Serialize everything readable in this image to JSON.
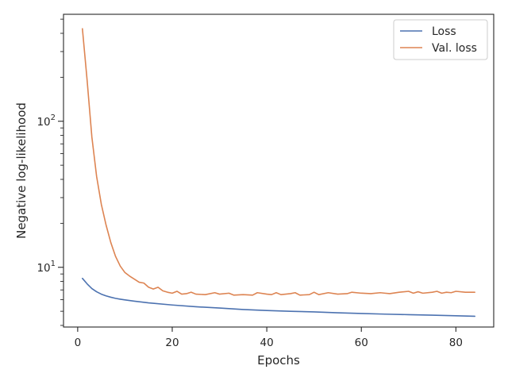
{
  "chart_data": {
    "type": "line",
    "xlabel": "Epochs",
    "ylabel": "Negative log-likelihood",
    "y_scale": "log",
    "xlim": [
      -3,
      88
    ],
    "ylim": [
      3.9,
      540
    ],
    "x_ticks": [
      0,
      20,
      40,
      60,
      80
    ],
    "y_ticks": [
      {
        "value": 10,
        "base": "10",
        "exp": "1"
      },
      {
        "value": 100,
        "base": "10",
        "exp": "2"
      }
    ],
    "y_minor_ticks": [
      4,
      5,
      6,
      7,
      8,
      9,
      20,
      30,
      40,
      50,
      60,
      70,
      80,
      90,
      200,
      300,
      400,
      500
    ],
    "legend_position": "top-right",
    "grid": false,
    "series": [
      {
        "name": "Loss",
        "color": "#4c72b0",
        "points": [
          [
            1,
            8.4
          ],
          [
            2,
            7.7
          ],
          [
            3,
            7.15
          ],
          [
            4,
            6.8
          ],
          [
            5,
            6.55
          ],
          [
            6,
            6.37
          ],
          [
            7,
            6.24
          ],
          [
            8,
            6.13
          ],
          [
            9,
            6.05
          ],
          [
            10,
            5.98
          ],
          [
            12,
            5.86
          ],
          [
            15,
            5.71
          ],
          [
            20,
            5.52
          ],
          [
            25,
            5.37
          ],
          [
            30,
            5.26
          ],
          [
            35,
            5.14
          ],
          [
            40,
            5.06
          ],
          [
            45,
            5.0
          ],
          [
            50,
            4.95
          ],
          [
            55,
            4.88
          ],
          [
            60,
            4.83
          ],
          [
            65,
            4.78
          ],
          [
            70,
            4.74
          ],
          [
            75,
            4.7
          ],
          [
            80,
            4.66
          ],
          [
            84,
            4.62
          ]
        ]
      },
      {
        "name": "Val. loss",
        "color": "#dd8452",
        "points": [
          [
            1,
            430
          ],
          [
            2,
            190
          ],
          [
            3,
            78
          ],
          [
            4,
            42
          ],
          [
            5,
            27
          ],
          [
            6,
            19.5
          ],
          [
            7,
            14.8
          ],
          [
            8,
            11.9
          ],
          [
            9,
            10.2
          ],
          [
            10,
            9.2
          ],
          [
            11,
            8.7
          ],
          [
            12,
            8.3
          ],
          [
            13,
            7.9
          ],
          [
            14,
            7.8
          ],
          [
            15,
            7.3
          ],
          [
            16,
            7.1
          ],
          [
            17,
            7.3
          ],
          [
            18,
            6.9
          ],
          [
            19,
            6.75
          ],
          [
            20,
            6.65
          ],
          [
            21,
            6.85
          ],
          [
            22,
            6.55
          ],
          [
            23,
            6.6
          ],
          [
            24,
            6.75
          ],
          [
            25,
            6.55
          ],
          [
            27,
            6.5
          ],
          [
            29,
            6.7
          ],
          [
            30,
            6.55
          ],
          [
            32,
            6.65
          ],
          [
            33,
            6.45
          ],
          [
            35,
            6.5
          ],
          [
            37,
            6.45
          ],
          [
            38,
            6.7
          ],
          [
            40,
            6.55
          ],
          [
            41,
            6.5
          ],
          [
            42,
            6.7
          ],
          [
            43,
            6.5
          ],
          [
            45,
            6.6
          ],
          [
            46,
            6.7
          ],
          [
            47,
            6.45
          ],
          [
            49,
            6.5
          ],
          [
            50,
            6.75
          ],
          [
            51,
            6.5
          ],
          [
            53,
            6.7
          ],
          [
            55,
            6.55
          ],
          [
            57,
            6.6
          ],
          [
            58,
            6.75
          ],
          [
            60,
            6.65
          ],
          [
            62,
            6.6
          ],
          [
            64,
            6.7
          ],
          [
            65,
            6.65
          ],
          [
            66,
            6.6
          ],
          [
            68,
            6.75
          ],
          [
            70,
            6.85
          ],
          [
            71,
            6.65
          ],
          [
            72,
            6.8
          ],
          [
            73,
            6.65
          ],
          [
            75,
            6.75
          ],
          [
            76,
            6.85
          ],
          [
            77,
            6.65
          ],
          [
            78,
            6.75
          ],
          [
            79,
            6.7
          ],
          [
            80,
            6.85
          ],
          [
            82,
            6.75
          ],
          [
            84,
            6.75
          ]
        ]
      }
    ]
  }
}
